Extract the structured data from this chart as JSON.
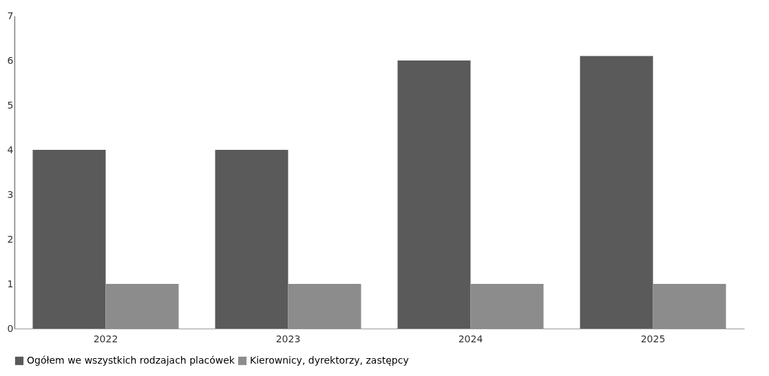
{
  "chart_data": {
    "type": "bar",
    "categories": [
      "2022",
      "2023",
      "2024",
      "2025"
    ],
    "series": [
      {
        "name": "Ogółem we wszystkich rodzajach placówek",
        "color": "#5a5a5a",
        "values": [
          4,
          4,
          6,
          6.1
        ]
      },
      {
        "name": "Kierownicy, dyrektorzy, zastępcy",
        "color": "#8c8c8c",
        "values": [
          1,
          1,
          1,
          1
        ]
      }
    ],
    "ylim": [
      0,
      7
    ],
    "yticks": [
      0,
      1,
      2,
      3,
      4,
      5,
      6,
      7
    ],
    "grid": false,
    "legend": "bottom"
  }
}
